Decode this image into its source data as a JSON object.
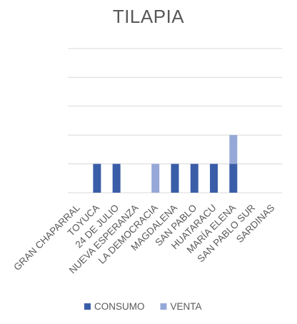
{
  "chart_data": {
    "type": "bar",
    "stacked": true,
    "title": "TILAPIA",
    "categories": [
      "GRAN CHAPARRAL",
      "TOYUCA",
      "24 DE JULIO",
      "NUEVA ESPERANZA",
      "LA DEMOCRACIA",
      "MAGDALENA",
      "SAN PABLO",
      "HUATARACU",
      "MARÍA ELENA",
      "SAN PABLO SUR",
      "SARDINAS"
    ],
    "series": [
      {
        "name": "CONSUMO",
        "color": "#3A5DA8",
        "values": [
          0,
          1,
          1,
          0,
          0,
          1,
          1,
          1,
          1,
          0,
          0
        ]
      },
      {
        "name": "VENTA",
        "color": "#95A8D8",
        "values": [
          0,
          0,
          0,
          0,
          1,
          0,
          0,
          0,
          1,
          0,
          0
        ]
      }
    ],
    "ylim": [
      0,
      5
    ],
    "grid": true,
    "y_tick_labels_shown": false,
    "legend_position": "bottom",
    "xlabel": "",
    "ylabel": ""
  }
}
